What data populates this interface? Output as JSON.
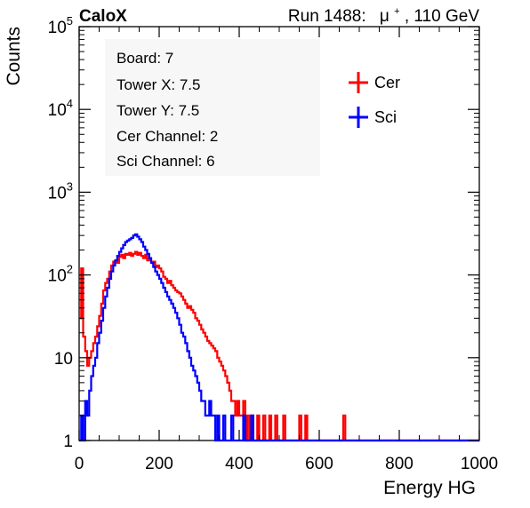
{
  "header": {
    "experiment": "CaloX",
    "run_label": "Run 1488:",
    "beam_particle": "μ",
    "beam_charge": "+",
    "beam_energy": ", 110 GeV"
  },
  "info_box": {
    "lines": [
      "Board: 7",
      "Tower X: 7.5",
      "Tower Y: 7.5",
      "Cer Channel: 2",
      "Sci Channel: 6"
    ]
  },
  "colors": {
    "cer": "#ff0000",
    "sci": "#0000ff",
    "axis": "#000000"
  },
  "chart_data": {
    "type": "line",
    "style": "step-histogram",
    "xlabel": "Energy HG",
    "ylabel": "Counts",
    "xlim": [
      0,
      1000
    ],
    "ylim": [
      1,
      100000
    ],
    "log_y": true,
    "grid": false,
    "legend_position": "top-right",
    "x_ticks": [
      0,
      200,
      400,
      600,
      800,
      1000
    ],
    "y_ticks": [
      {
        "value": 1,
        "base": "1",
        "exp": ""
      },
      {
        "value": 10,
        "base": "10",
        "exp": ""
      },
      {
        "value": 100,
        "base": "10",
        "exp": "2"
      },
      {
        "value": 1000,
        "base": "10",
        "exp": "3"
      },
      {
        "value": 10000,
        "base": "10",
        "exp": "4"
      },
      {
        "value": 100000,
        "base": "10",
        "exp": "5"
      }
    ],
    "series": [
      {
        "name": "Cer",
        "color": "#ff0000",
        "points": [
          [
            0,
            30
          ],
          [
            5,
            120
          ],
          [
            10,
            18
          ],
          [
            15,
            12
          ],
          [
            20,
            8
          ],
          [
            25,
            10
          ],
          [
            30,
            12
          ],
          [
            35,
            15
          ],
          [
            40,
            18
          ],
          [
            45,
            24
          ],
          [
            50,
            32
          ],
          [
            55,
            45
          ],
          [
            60,
            65
          ],
          [
            65,
            80
          ],
          [
            70,
            90
          ],
          [
            75,
            110
          ],
          [
            80,
            130
          ],
          [
            85,
            145
          ],
          [
            90,
            150
          ],
          [
            95,
            140
          ],
          [
            100,
            165
          ],
          [
            105,
            175
          ],
          [
            110,
            160
          ],
          [
            115,
            180
          ],
          [
            120,
            175
          ],
          [
            125,
            185
          ],
          [
            130,
            170
          ],
          [
            135,
            180
          ],
          [
            140,
            190
          ],
          [
            145,
            175
          ],
          [
            150,
            185
          ],
          [
            155,
            170
          ],
          [
            160,
            160
          ],
          [
            165,
            175
          ],
          [
            170,
            150
          ],
          [
            175,
            155
          ],
          [
            180,
            140
          ],
          [
            185,
            145
          ],
          [
            190,
            125
          ],
          [
            195,
            130
          ],
          [
            200,
            120
          ],
          [
            205,
            110
          ],
          [
            210,
            95
          ],
          [
            215,
            90
          ],
          [
            220,
            80
          ],
          [
            225,
            85
          ],
          [
            230,
            75
          ],
          [
            235,
            70
          ],
          [
            240,
            65
          ],
          [
            245,
            62
          ],
          [
            250,
            60
          ],
          [
            255,
            55
          ],
          [
            260,
            50
          ],
          [
            265,
            45
          ],
          [
            270,
            40
          ],
          [
            275,
            42
          ],
          [
            280,
            38
          ],
          [
            285,
            35
          ],
          [
            290,
            30
          ],
          [
            295,
            28
          ],
          [
            300,
            25
          ],
          [
            305,
            22
          ],
          [
            310,
            20
          ],
          [
            315,
            18
          ],
          [
            320,
            16
          ],
          [
            325,
            15
          ],
          [
            330,
            14
          ],
          [
            335,
            13
          ],
          [
            340,
            12
          ],
          [
            345,
            10
          ],
          [
            350,
            9
          ],
          [
            355,
            8
          ],
          [
            360,
            7
          ],
          [
            365,
            6
          ],
          [
            370,
            5
          ],
          [
            375,
            4
          ],
          [
            380,
            3
          ],
          [
            385,
            3
          ],
          [
            390,
            2
          ],
          [
            395,
            3
          ],
          [
            400,
            2
          ],
          [
            405,
            2
          ],
          [
            410,
            3
          ],
          [
            415,
            1
          ],
          [
            420,
            2
          ],
          [
            425,
            1
          ],
          [
            430,
            2
          ],
          [
            435,
            1
          ],
          [
            440,
            1
          ],
          [
            445,
            2
          ],
          [
            450,
            1
          ],
          [
            455,
            1
          ],
          [
            460,
            2
          ],
          [
            465,
            1
          ],
          [
            470,
            1
          ],
          [
            475,
            2
          ],
          [
            480,
            1
          ],
          [
            485,
            1
          ],
          [
            490,
            2
          ],
          [
            495,
            1
          ],
          [
            500,
            1
          ],
          [
            505,
            1
          ],
          [
            510,
            2
          ],
          [
            515,
            1
          ],
          [
            520,
            1
          ],
          [
            525,
            1
          ],
          [
            530,
            1
          ],
          [
            535,
            1
          ],
          [
            540,
            1
          ],
          [
            545,
            1
          ],
          [
            550,
            2
          ],
          [
            555,
            1
          ],
          [
            560,
            1
          ],
          [
            565,
            2
          ],
          [
            570,
            1
          ],
          [
            575,
            1
          ],
          [
            580,
            1
          ],
          [
            585,
            1
          ],
          [
            590,
            1
          ],
          [
            595,
            1
          ],
          [
            600,
            1
          ],
          [
            605,
            1
          ],
          [
            610,
            1
          ],
          [
            615,
            1
          ],
          [
            620,
            1
          ],
          [
            625,
            1
          ],
          [
            630,
            1
          ],
          [
            635,
            1
          ],
          [
            640,
            1
          ],
          [
            645,
            1
          ],
          [
            650,
            1
          ],
          [
            655,
            1
          ],
          [
            660,
            2
          ],
          [
            665,
            1
          ],
          [
            670,
            1
          ],
          [
            675,
            1
          ],
          [
            680,
            1
          ],
          [
            685,
            1
          ],
          [
            690,
            1
          ],
          [
            695,
            1
          ],
          [
            700,
            1
          ],
          [
            1000,
            1
          ]
        ]
      },
      {
        "name": "Sci",
        "color": "#0000ff",
        "points": [
          [
            0,
            1
          ],
          [
            5,
            2
          ],
          [
            10,
            1
          ],
          [
            15,
            3
          ],
          [
            20,
            2
          ],
          [
            25,
            4
          ],
          [
            30,
            6
          ],
          [
            35,
            8
          ],
          [
            40,
            10
          ],
          [
            45,
            15
          ],
          [
            50,
            20
          ],
          [
            55,
            28
          ],
          [
            60,
            40
          ],
          [
            65,
            55
          ],
          [
            70,
            70
          ],
          [
            75,
            90
          ],
          [
            80,
            110
          ],
          [
            85,
            130
          ],
          [
            90,
            150
          ],
          [
            95,
            170
          ],
          [
            100,
            190
          ],
          [
            105,
            210
          ],
          [
            110,
            230
          ],
          [
            115,
            250
          ],
          [
            120,
            260
          ],
          [
            125,
            270
          ],
          [
            130,
            280
          ],
          [
            135,
            300
          ],
          [
            140,
            310
          ],
          [
            145,
            290
          ],
          [
            150,
            270
          ],
          [
            155,
            250
          ],
          [
            160,
            220
          ],
          [
            165,
            200
          ],
          [
            170,
            180
          ],
          [
            175,
            160
          ],
          [
            180,
            140
          ],
          [
            185,
            125
          ],
          [
            190,
            110
          ],
          [
            195,
            100
          ],
          [
            200,
            90
          ],
          [
            205,
            80
          ],
          [
            210,
            70
          ],
          [
            215,
            62
          ],
          [
            220,
            55
          ],
          [
            225,
            50
          ],
          [
            230,
            45
          ],
          [
            235,
            40
          ],
          [
            240,
            35
          ],
          [
            245,
            30
          ],
          [
            250,
            25
          ],
          [
            255,
            20
          ],
          [
            260,
            18
          ],
          [
            265,
            15
          ],
          [
            270,
            12
          ],
          [
            275,
            10
          ],
          [
            280,
            8
          ],
          [
            285,
            7
          ],
          [
            290,
            6
          ],
          [
            295,
            5
          ],
          [
            300,
            4
          ],
          [
            305,
            3
          ],
          [
            310,
            3
          ],
          [
            315,
            2
          ],
          [
            320,
            2
          ],
          [
            325,
            3
          ],
          [
            330,
            2
          ],
          [
            335,
            2
          ],
          [
            340,
            1
          ],
          [
            345,
            2
          ],
          [
            350,
            1
          ],
          [
            355,
            1
          ],
          [
            360,
            2
          ],
          [
            365,
            1
          ],
          [
            370,
            1
          ],
          [
            375,
            1
          ],
          [
            380,
            2
          ],
          [
            385,
            1
          ],
          [
            390,
            1
          ],
          [
            395,
            1
          ],
          [
            400,
            1
          ],
          [
            405,
            1
          ],
          [
            410,
            2
          ],
          [
            415,
            1
          ],
          [
            420,
            1
          ],
          [
            425,
            1
          ],
          [
            430,
            2
          ],
          [
            435,
            1
          ],
          [
            440,
            1
          ],
          [
            445,
            1
          ],
          [
            450,
            1
          ],
          [
            455,
            1
          ],
          [
            460,
            1
          ],
          [
            465,
            1
          ],
          [
            470,
            1
          ],
          [
            475,
            1
          ],
          [
            480,
            1
          ],
          [
            485,
            1
          ],
          [
            490,
            1
          ],
          [
            495,
            1
          ],
          [
            500,
            1
          ],
          [
            1000,
            1
          ]
        ]
      }
    ]
  }
}
